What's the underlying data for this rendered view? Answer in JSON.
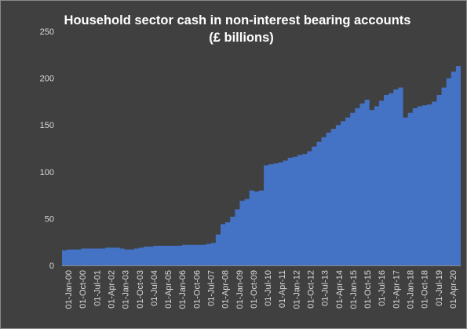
{
  "chart_data": {
    "type": "area",
    "title_lines": [
      "Household sector cash in non-interest bearing accounts",
      "(£ billions)"
    ],
    "xlabel": "",
    "ylabel": "",
    "ylim": [
      0,
      250
    ],
    "yticks": [
      0,
      50,
      100,
      150,
      200,
      250
    ],
    "grid": false,
    "legend": "none",
    "x_tick_labels": [
      "01-Jan-00",
      "01-Oct-00",
      "01-Jul-01",
      "01-Apr-02",
      "01-Jan-03",
      "01-Oct-03",
      "01-Jul-04",
      "01-Apr-05",
      "01-Jan-06",
      "01-Oct-06",
      "01-Jul-07",
      "01-Apr-08",
      "01-Jan-09",
      "01-Oct-09",
      "01-Jul-10",
      "01-Apr-11",
      "01-Jan-12",
      "01-Oct-12",
      "01-Jul-13",
      "01-Apr-14",
      "01-Jan-15",
      "01-Oct-15",
      "01-Jul-16",
      "01-Apr-17",
      "01-Jan-18",
      "01-Oct-18",
      "01-Jul-19",
      "01-Apr-20"
    ],
    "series": [
      {
        "color": "#4472c4",
        "x": [
          "01-Jan-00",
          "01-Apr-00",
          "01-Jul-00",
          "01-Oct-00",
          "01-Jan-01",
          "01-Apr-01",
          "01-Jul-01",
          "01-Oct-01",
          "01-Jan-02",
          "01-Apr-02",
          "01-Jul-02",
          "01-Oct-02",
          "01-Jan-03",
          "01-Apr-03",
          "01-Jul-03",
          "01-Oct-03",
          "01-Jan-04",
          "01-Apr-04",
          "01-Jul-04",
          "01-Oct-04",
          "01-Jan-05",
          "01-Apr-05",
          "01-Jul-05",
          "01-Oct-05",
          "01-Jan-06",
          "01-Apr-06",
          "01-Jul-06",
          "01-Oct-06",
          "01-Jan-07",
          "01-Apr-07",
          "01-Jul-07",
          "01-Oct-07",
          "01-Jan-08",
          "01-Apr-08",
          "01-Jul-08",
          "01-Oct-08",
          "01-Jan-09",
          "01-Apr-09",
          "01-Jul-09",
          "01-Oct-09",
          "01-Jan-10",
          "01-Apr-10",
          "01-Jul-10",
          "01-Oct-10",
          "01-Jan-11",
          "01-Apr-11",
          "01-Jul-11",
          "01-Oct-11",
          "01-Jan-12",
          "01-Apr-12",
          "01-Jul-12",
          "01-Oct-12",
          "01-Jan-13",
          "01-Apr-13",
          "01-Jul-13",
          "01-Oct-13",
          "01-Jan-14",
          "01-Apr-14",
          "01-Jul-14",
          "01-Oct-14",
          "01-Jan-15",
          "01-Apr-15",
          "01-Jul-15",
          "01-Oct-15",
          "01-Jan-16",
          "01-Apr-16",
          "01-Jul-16",
          "01-Oct-16",
          "01-Jan-17",
          "01-Apr-17",
          "01-Jul-17",
          "01-Oct-17",
          "01-Jan-18",
          "01-Apr-18",
          "01-Jul-18",
          "01-Oct-18",
          "01-Jan-19",
          "01-Apr-19",
          "01-Jul-19",
          "01-Oct-19",
          "01-Jan-20",
          "01-Apr-20",
          "01-Jul-20",
          "01-Oct-20"
        ],
        "values": [
          16,
          17,
          17,
          17,
          18,
          18,
          18,
          18,
          18,
          19,
          19,
          19,
          18,
          17,
          17,
          18,
          19,
          20,
          20,
          21,
          21,
          21,
          21,
          21,
          21,
          22,
          22,
          22,
          22,
          22,
          23,
          24,
          33,
          44,
          46,
          52,
          60,
          69,
          71,
          80,
          79,
          80,
          107,
          108,
          109,
          110,
          112,
          115,
          116,
          118,
          119,
          122,
          127,
          132,
          137,
          142,
          146,
          150,
          154,
          158,
          163,
          168,
          173,
          177,
          166,
          170,
          176,
          182,
          184,
          188,
          190,
          158,
          163,
          168,
          170,
          171,
          172,
          175,
          182,
          190,
          200,
          207,
          213,
          215
        ]
      }
    ]
  }
}
